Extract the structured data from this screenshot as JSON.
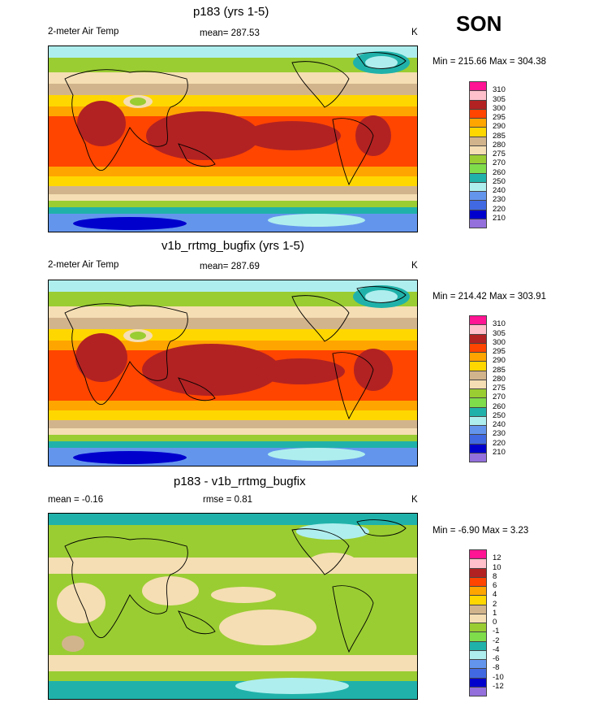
{
  "season": "SON",
  "panels": [
    {
      "title": "p183 (yrs 1-5)",
      "variable": "2-meter Air Temp",
      "stat": "mean= 287.53",
      "stat2": "",
      "units": "K",
      "minmax": "Min = 215.66 Max = 304.38",
      "kind": "abs"
    },
    {
      "title": "v1b_rrtmg_bugfix (yrs 1-5)",
      "variable": "2-meter Air Temp",
      "stat": "mean= 287.69",
      "stat2": "",
      "units": "K",
      "minmax": "Min = 214.42 Max = 303.91",
      "kind": "abs"
    },
    {
      "title": "p183 - v1b_rrtmg_bugfix",
      "variable": "",
      "stat": "mean =  -0.16",
      "stat2": "rmse =   0.81",
      "units": "K",
      "minmax": "Min =  -6.90 Max =   3.23",
      "kind": "diff"
    }
  ],
  "chart_data": [
    {
      "type": "heatmap",
      "title": "p183 (yrs 1-5)",
      "subtitle": "2-meter Air Temp",
      "units": "K",
      "mean": 287.53,
      "min": 215.66,
      "max": 304.38,
      "season": "SON",
      "colorbar_levels": [
        310,
        305,
        300,
        295,
        290,
        285,
        280,
        275,
        270,
        260,
        250,
        240,
        230,
        220,
        210
      ],
      "colorbar_colors": [
        "#ff1493",
        "#ffc0cb",
        "#b22222",
        "#ff4500",
        "#ffa500",
        "#ffd700",
        "#d2b48c",
        "#f5deb3",
        "#9acd32",
        "#7fdd4c",
        "#20b2aa",
        "#afeeee",
        "#6495ed",
        "#4169e1",
        "#0000cd",
        "#9370db"
      ]
    },
    {
      "type": "heatmap",
      "title": "v1b_rrtmg_bugfix (yrs 1-5)",
      "subtitle": "2-meter Air Temp",
      "units": "K",
      "mean": 287.69,
      "min": 214.42,
      "max": 303.91,
      "season": "SON",
      "colorbar_levels": [
        310,
        305,
        300,
        295,
        290,
        285,
        280,
        275,
        270,
        260,
        250,
        240,
        230,
        220,
        210
      ],
      "colorbar_colors": [
        "#ff1493",
        "#ffc0cb",
        "#b22222",
        "#ff4500",
        "#ffa500",
        "#ffd700",
        "#d2b48c",
        "#f5deb3",
        "#9acd32",
        "#7fdd4c",
        "#20b2aa",
        "#afeeee",
        "#6495ed",
        "#4169e1",
        "#0000cd",
        "#9370db"
      ]
    },
    {
      "type": "heatmap",
      "title": "p183 - v1b_rrtmg_bugfix",
      "units": "K",
      "mean": -0.16,
      "rmse": 0.81,
      "min": -6.9,
      "max": 3.23,
      "season": "SON",
      "colorbar_levels": [
        12,
        10,
        8,
        6,
        4,
        2,
        1,
        0,
        -1,
        -2,
        -4,
        -6,
        -8,
        -10,
        -12
      ],
      "colorbar_colors": [
        "#ff1493",
        "#ffc0cb",
        "#b22222",
        "#ff4500",
        "#ffa500",
        "#ffd700",
        "#d2b48c",
        "#f5deb3",
        "#9acd32",
        "#7fdd4c",
        "#20b2aa",
        "#afeeee",
        "#6495ed",
        "#4169e1",
        "#0000cd",
        "#9370db"
      ]
    }
  ]
}
